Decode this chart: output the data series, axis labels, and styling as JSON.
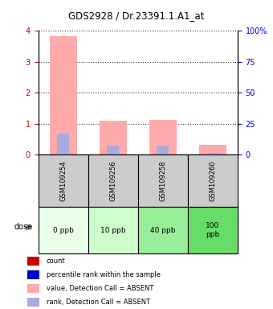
{
  "title": "GDS2928 / Dr.23391.1.A1_at",
  "samples": [
    "GSM109254",
    "GSM109256",
    "GSM109258",
    "GSM109260"
  ],
  "doses": [
    "0 ppb",
    "10 ppb",
    "40 ppb",
    "100\nppb"
  ],
  "dose_colors": [
    "#e8ffe8",
    "#ccffcc",
    "#99ee99",
    "#66dd66"
  ],
  "sample_bg_color": "#cccccc",
  "bar_value_absent": [
    3.82,
    1.1,
    1.12,
    0.3
  ],
  "bar_rank_absent_pct": [
    17.0,
    7.0,
    7.0,
    1.25
  ],
  "ylim_left": [
    0,
    4
  ],
  "ylim_right": [
    0,
    100
  ],
  "yticks_left": [
    0,
    1,
    2,
    3,
    4
  ],
  "yticks_right": [
    0,
    25,
    50,
    75,
    100
  ],
  "ytick_labels_right": [
    "0",
    "25",
    "50",
    "75",
    "100%"
  ],
  "color_value_absent": "#ffaaaa",
  "color_rank_absent": "#aaaadd",
  "color_count": "#cc0000",
  "color_rank": "#0000cc",
  "legend_labels": [
    "count",
    "percentile rank within the sample",
    "value, Detection Call = ABSENT",
    "rank, Detection Call = ABSENT"
  ],
  "legend_colors": [
    "#cc0000",
    "#0000cc",
    "#ffaaaa",
    "#aaaadd"
  ]
}
